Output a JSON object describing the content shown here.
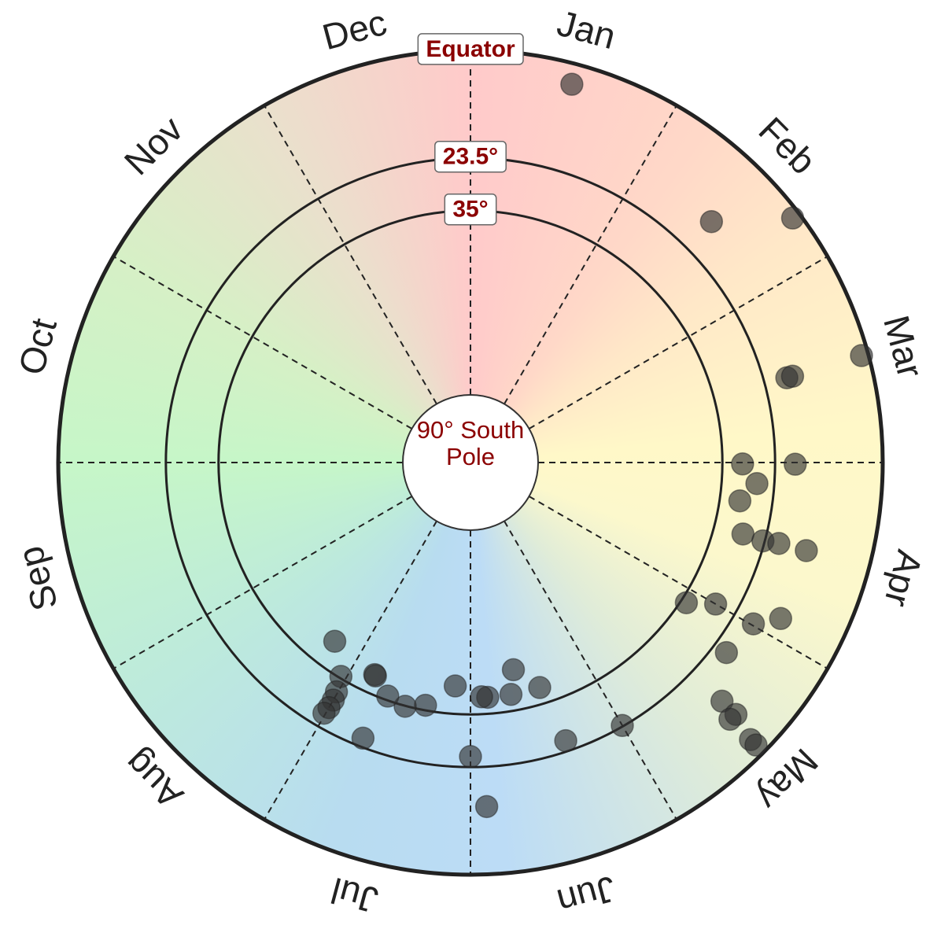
{
  "chart_data": {
    "type": "polar",
    "categories": [
      "Jan",
      "Feb",
      "Mar",
      "Apr",
      "May",
      "Jun",
      "Jul",
      "Aug",
      "Sep",
      "Oct",
      "Nov",
      "Dec"
    ],
    "xlim": [
      0,
      12
    ],
    "xticks": [
      0,
      1,
      2,
      3,
      4,
      5,
      6,
      7,
      8,
      9,
      10,
      11
    ],
    "ylim": [
      0,
      90
    ],
    "yticks": [
      {
        "value": 0,
        "label": "Equator"
      },
      {
        "value": 23.5,
        "label": "23.5°"
      },
      {
        "value": 35,
        "label": "35°"
      },
      {
        "value": 90,
        "label": "90° South Pole"
      }
    ],
    "grid": true,
    "series": [
      {
        "color": "#333333",
        "x": [
          0.5,
          1.5,
          1.76,
          2.49,
          2.5,
          2.5,
          3.01,
          3.01,
          3.14,
          3.27,
          3.49,
          3.5,
          3.49,
          3.49,
          4.1,
          4.0,
          3.99,
          3.89,
          4.22,
          4.45,
          4.45,
          4.49,
          4.49,
          4.49,
          5.0,
          5.37,
          5.43,
          5.61,
          5.67,
          5.86,
          5.91,
          5.91,
          6.0,
          6.13,
          6.35,
          6.5,
          6.65,
          6.81,
          6.8,
          7.04,
          7.24,
          7.01,
          7.0,
          7.0,
          7.01,
          6.71
        ],
        "values": [
          4.5,
          15.6,
          1.7,
          1.5,
          18.5,
          17.2,
          30.6,
          19.1,
          27.3,
          30.6,
          28.5,
          23.9,
          20.4,
          14.2,
          33.8,
          28.2,
          18.9,
          14.2,
          20.4,
          14.3,
          10.1,
          10.3,
          4.0,
          2.3,
          23.7,
          25.8,
          38.6,
          43.8,
          38.6,
          38.6,
          38.8,
          14.8,
          25.8,
          41.1,
          36.1,
          34.9,
          35.9,
          39.2,
          39.0,
          35.4,
          41.0,
          32.0,
          30.1,
          28.2,
          26.6,
          25.4
        ]
      }
    ]
  }
}
